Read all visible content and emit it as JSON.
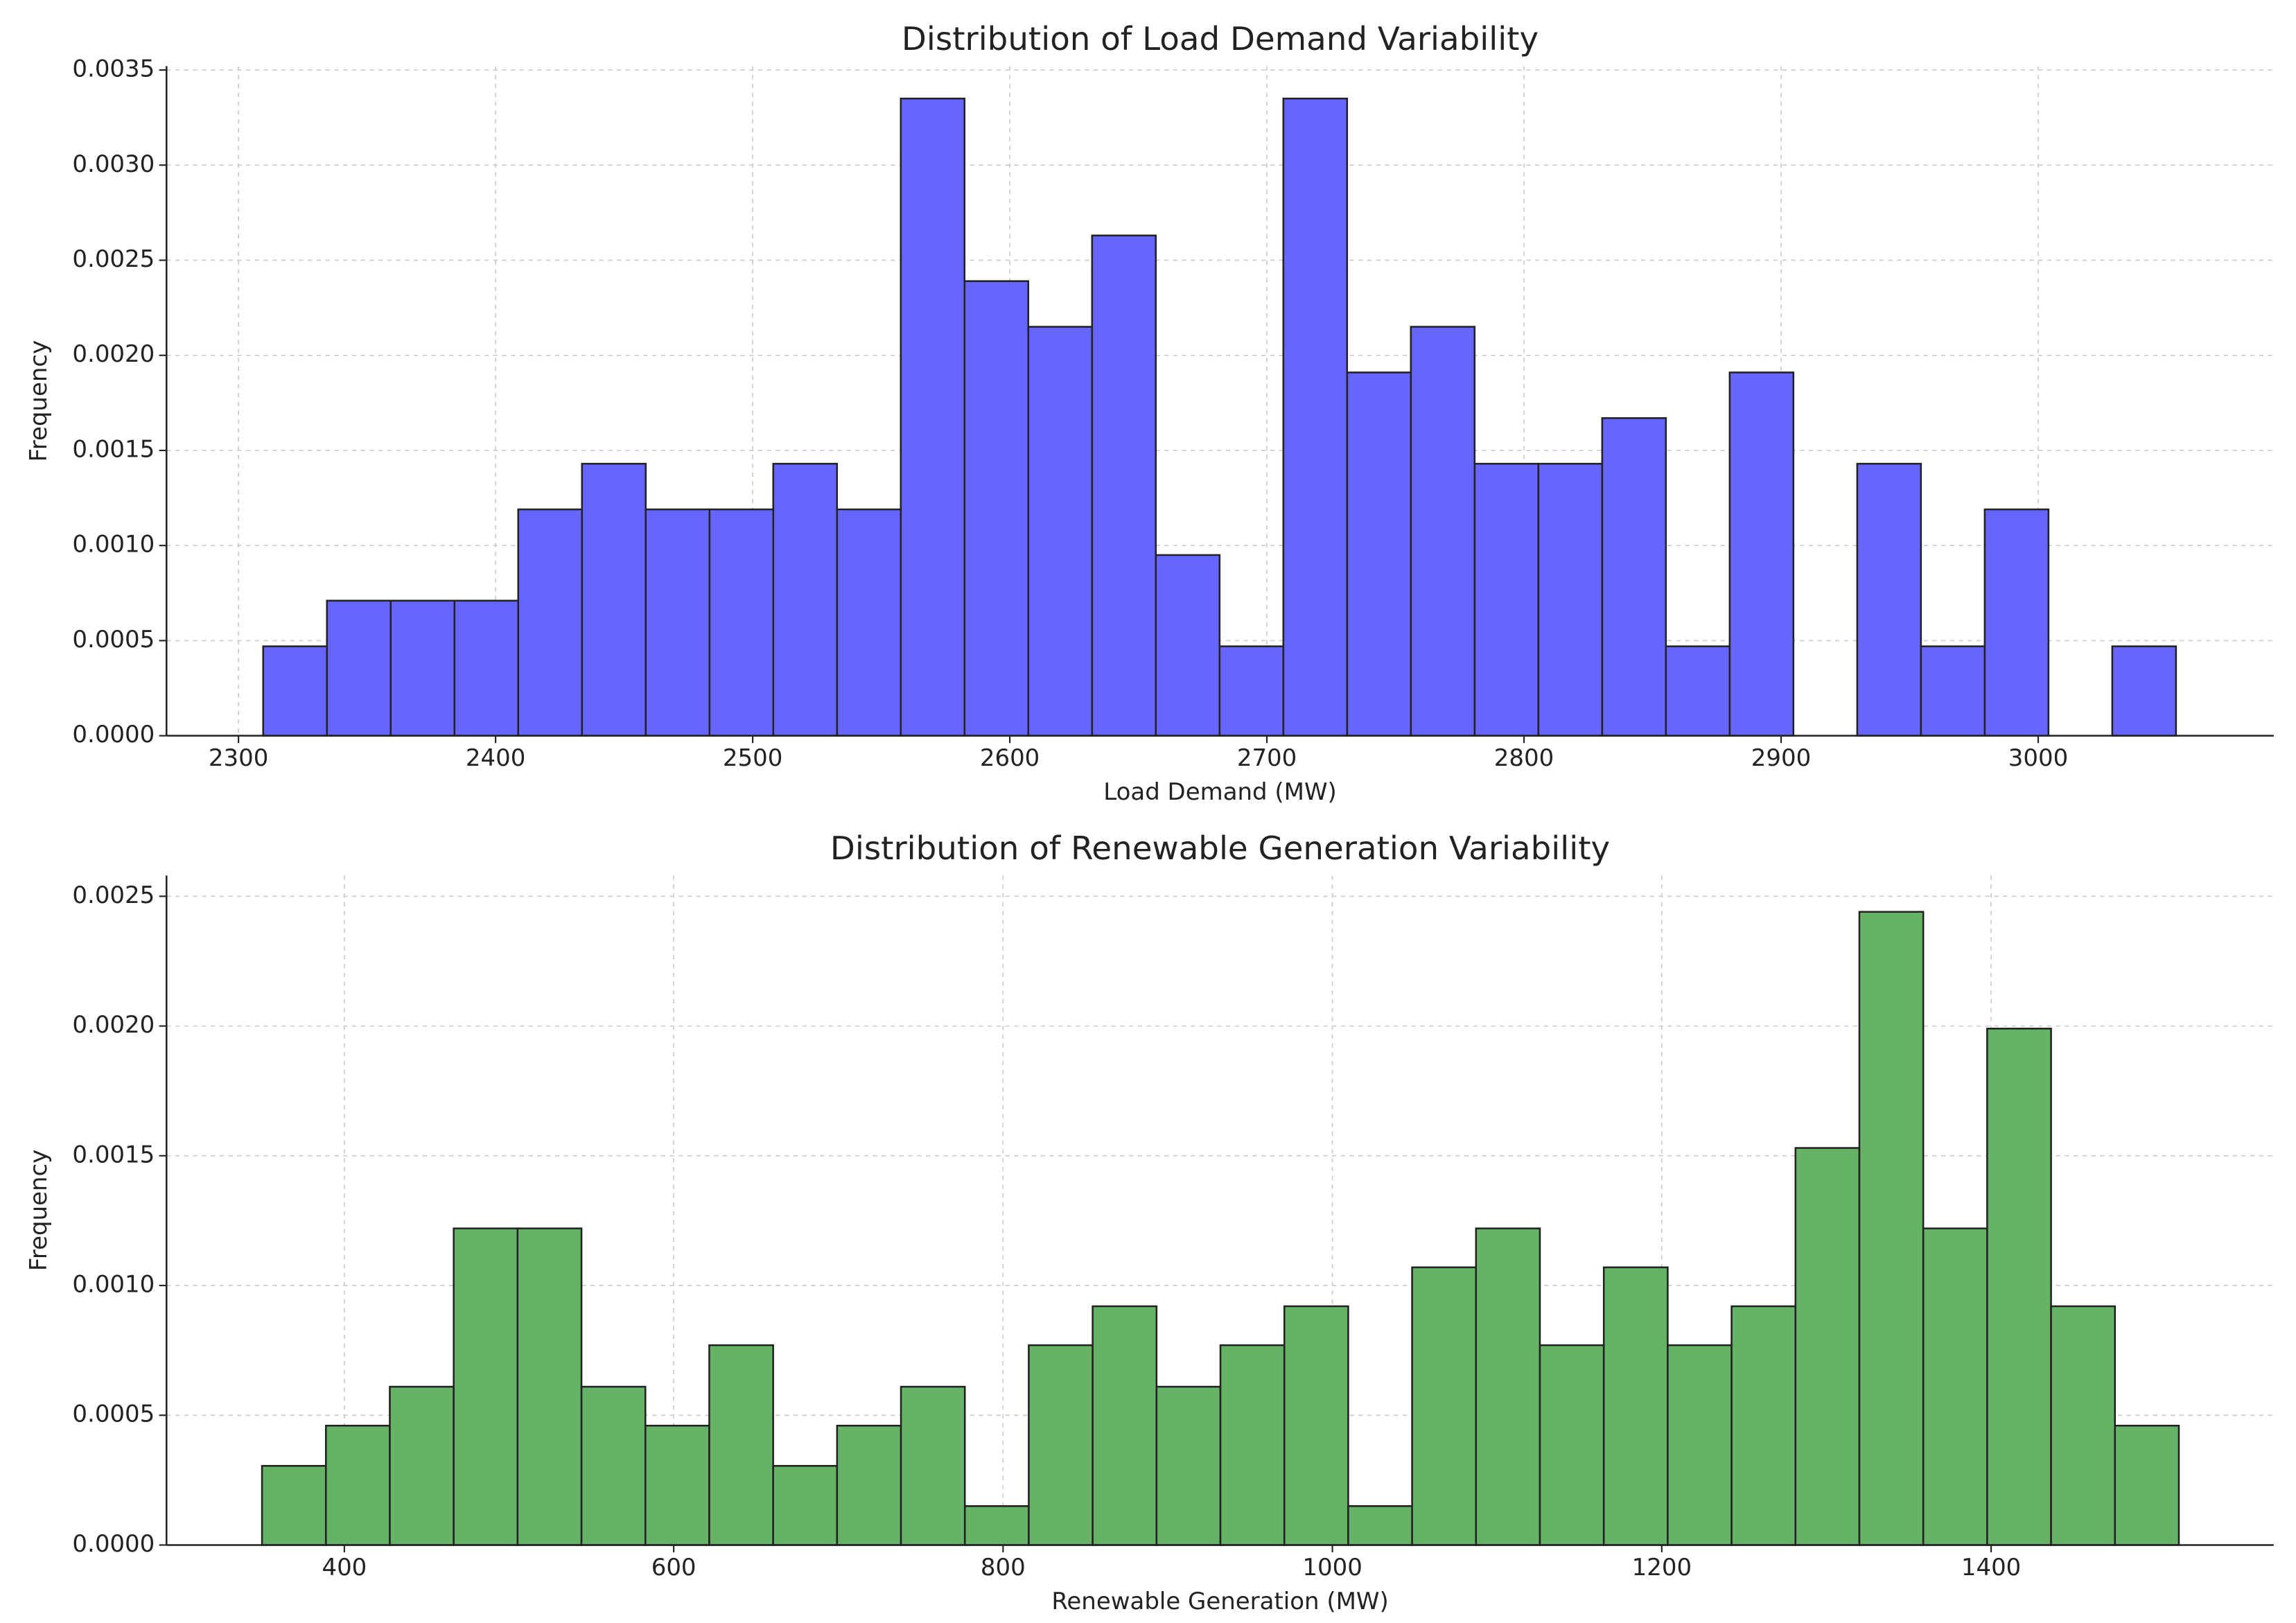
{
  "chart_data": [
    {
      "type": "histogram",
      "title": "Distribution of Load Demand Variability",
      "x_label": "Load Demand (MW)",
      "y_label": "Frequency",
      "color": "#6666ff",
      "bins": [
        2309.6,
        2334.4,
        2359.2,
        2384.0,
        2408.8,
        2433.6,
        2458.4,
        2483.2,
        2508.0,
        2532.8,
        2557.6,
        2582.4,
        2607.2,
        2632.0,
        2656.8,
        2681.6,
        2706.4,
        2731.2,
        2756.0,
        2780.8,
        2805.6,
        2830.4,
        2855.2,
        2880.0,
        2904.8,
        2929.6,
        2954.4,
        2979.2,
        3004.0,
        3028.8,
        3053.6
      ],
      "values": [
        0.00047,
        0.00071,
        0.00071,
        0.00071,
        0.00119,
        0.00143,
        0.00119,
        0.00119,
        0.00143,
        0.00119,
        0.00335,
        0.00239,
        0.00215,
        0.00263,
        0.00095,
        0.00047,
        0.00335,
        0.00191,
        0.00215,
        0.00143,
        0.00143,
        0.00167,
        0.00047,
        0.00191,
        0,
        0.00143,
        0.00047,
        0.00119,
        0,
        0.00047
      ],
      "xlim": [
        2272,
        3091.6
      ],
      "ylim": [
        0,
        0.00352
      ],
      "xticks": [
        2300,
        2400,
        2500,
        2600,
        2700,
        2800,
        2900,
        3000
      ],
      "yticks": [
        {
          "value": 0,
          "label": "0.0000"
        },
        {
          "value": 0.0005,
          "label": "0.0005"
        },
        {
          "value": 0.001,
          "label": "0.0010"
        },
        {
          "value": 0.0015,
          "label": "0.0015"
        },
        {
          "value": 0.002,
          "label": "0.0020"
        },
        {
          "value": 0.0025,
          "label": "0.0025"
        },
        {
          "value": 0.003,
          "label": "0.0030"
        },
        {
          "value": 0.0035,
          "label": "0.0035"
        }
      ],
      "grid": true
    },
    {
      "type": "histogram",
      "title": "Distribution of Renewable Generation Variability",
      "x_label": "Renewable Generation (MW)",
      "y_label": "Frequency",
      "color": "#66b266",
      "bins": [
        350,
        388.8,
        427.6,
        466.4,
        505.2,
        544,
        582.8,
        621.6,
        660.4,
        699.2,
        738,
        776.8,
        815.6,
        854.4,
        893.2,
        932,
        970.8,
        1009.6,
        1048.4,
        1087.2,
        1126,
        1164.8,
        1203.6,
        1242.4,
        1281.2,
        1320,
        1358.8,
        1397.6,
        1436.4,
        1475.2,
        1514
      ],
      "values": [
        0.000305,
        0.00046,
        0.00061,
        0.00122,
        0.00122,
        0.00061,
        0.00046,
        0.00077,
        0.000305,
        0.00046,
        0.00061,
        0.00015,
        0.00077,
        0.00092,
        0.00061,
        0.00077,
        0.00092,
        0.00015,
        0.00107,
        0.00122,
        0.00077,
        0.00107,
        0.00077,
        0.00092,
        0.00153,
        0.00244,
        0.00122,
        0.00199,
        0.00092,
        0.00046
      ],
      "xlim": [
        292,
        1571.6
      ],
      "ylim": [
        0,
        0.00258
      ],
      "xticks": [
        400,
        600,
        800,
        1000,
        1200,
        1400
      ],
      "yticks": [
        {
          "value": 0,
          "label": "0.0000"
        },
        {
          "value": 0.0005,
          "label": "0.0005"
        },
        {
          "value": 0.001,
          "label": "0.0010"
        },
        {
          "value": 0.0015,
          "label": "0.0015"
        },
        {
          "value": 0.002,
          "label": "0.0020"
        },
        {
          "value": 0.0025,
          "label": "0.0025"
        }
      ],
      "grid": true
    }
  ]
}
